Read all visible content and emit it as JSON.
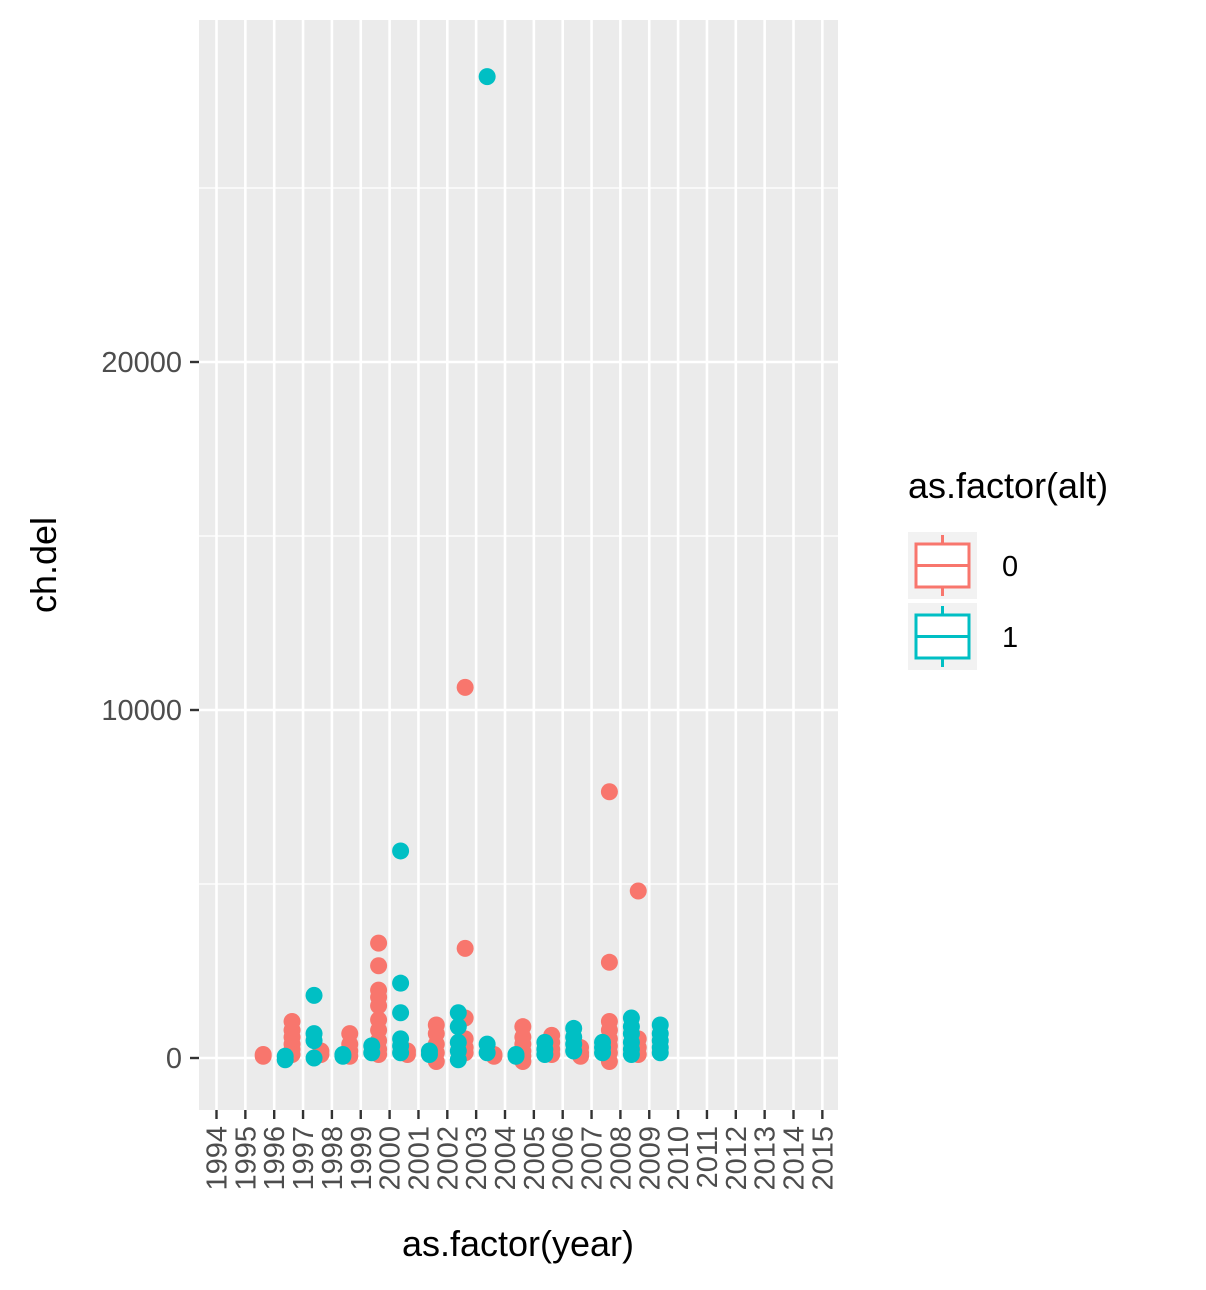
{
  "chart_data": {
    "type": "boxplot",
    "xlabel": "as.factor(year)",
    "ylabel": "ch.del",
    "categories": [
      "1994",
      "1995",
      "1996",
      "1997",
      "1998",
      "1999",
      "2000",
      "2001",
      "2002",
      "2003",
      "2004",
      "2005",
      "2006",
      "2007",
      "2008",
      "2009",
      "2010",
      "2011",
      "2012",
      "2013",
      "2014",
      "2015"
    ],
    "ylim": [
      -1500,
      28200
    ],
    "yticks": [
      0,
      10000,
      20000
    ],
    "grid": true,
    "legend": {
      "title": "as.factor(alt)",
      "position": "right",
      "entries": [
        {
          "label": "0",
          "color": "#F8766D"
        },
        {
          "label": "1",
          "color": "#00BFC4"
        }
      ]
    },
    "series": [
      {
        "name": "0",
        "color": "#F8766D",
        "points": [
          [
            "1996",
            100
          ],
          [
            "1996",
            50
          ],
          [
            "1997",
            1050
          ],
          [
            "1997",
            800
          ],
          [
            "1997",
            600
          ],
          [
            "1997",
            400
          ],
          [
            "1997",
            250
          ],
          [
            "1997",
            100
          ],
          [
            "1998",
            200
          ],
          [
            "1998",
            100
          ],
          [
            "1999",
            700
          ],
          [
            "1999",
            400
          ],
          [
            "1999",
            200
          ],
          [
            "1999",
            50
          ],
          [
            "2000",
            3300
          ],
          [
            "2000",
            2650
          ],
          [
            "2000",
            1950
          ],
          [
            "2000",
            1750
          ],
          [
            "2000",
            1500
          ],
          [
            "2000",
            1100
          ],
          [
            "2000",
            800
          ],
          [
            "2000",
            500
          ],
          [
            "2000",
            250
          ],
          [
            "2000",
            100
          ],
          [
            "2001",
            200
          ],
          [
            "2001",
            100
          ],
          [
            "2002",
            950
          ],
          [
            "2002",
            700
          ],
          [
            "2002",
            400
          ],
          [
            "2002",
            150
          ],
          [
            "2002",
            -100
          ],
          [
            "2003",
            10650
          ],
          [
            "2003",
            3150
          ],
          [
            "2003",
            1150
          ],
          [
            "2003",
            550
          ],
          [
            "2003",
            300
          ],
          [
            "2003",
            150
          ],
          [
            "2004",
            100
          ],
          [
            "2004",
            50
          ],
          [
            "2005",
            900
          ],
          [
            "2005",
            600
          ],
          [
            "2005",
            400
          ],
          [
            "2005",
            200
          ],
          [
            "2005",
            50
          ],
          [
            "2005",
            -100
          ],
          [
            "2006",
            650
          ],
          [
            "2006",
            450
          ],
          [
            "2006",
            250
          ],
          [
            "2006",
            100
          ],
          [
            "2007",
            300
          ],
          [
            "2007",
            150
          ],
          [
            "2007",
            50
          ],
          [
            "2008",
            7650
          ],
          [
            "2008",
            2750
          ],
          [
            "2008",
            1050
          ],
          [
            "2008",
            800
          ],
          [
            "2008",
            550
          ],
          [
            "2008",
            350
          ],
          [
            "2008",
            150
          ],
          [
            "2008",
            -100
          ],
          [
            "2009",
            4800
          ],
          [
            "2009",
            550
          ],
          [
            "2009",
            300
          ],
          [
            "2009",
            100
          ]
        ]
      },
      {
        "name": "1",
        "color": "#00BFC4",
        "points": [
          [
            "1996",
            50
          ],
          [
            "1996",
            -50
          ],
          [
            "1997",
            1800
          ],
          [
            "1997",
            700
          ],
          [
            "1997",
            500
          ],
          [
            "1997",
            0
          ],
          [
            "1998",
            100
          ],
          [
            "1998",
            50
          ],
          [
            "1999",
            350
          ],
          [
            "1999",
            150
          ],
          [
            "2000",
            5950
          ],
          [
            "2000",
            2150
          ],
          [
            "2000",
            1300
          ],
          [
            "2000",
            550
          ],
          [
            "2000",
            350
          ],
          [
            "2000",
            150
          ],
          [
            "2001",
            200
          ],
          [
            "2001",
            100
          ],
          [
            "2002",
            1300
          ],
          [
            "2002",
            900
          ],
          [
            "2002",
            450
          ],
          [
            "2002",
            200
          ],
          [
            "2002",
            -50
          ],
          [
            "2003",
            28200
          ],
          [
            "2003",
            400
          ],
          [
            "2003",
            150
          ],
          [
            "2004",
            100
          ],
          [
            "2004",
            50
          ],
          [
            "2005",
            450
          ],
          [
            "2005",
            250
          ],
          [
            "2005",
            100
          ],
          [
            "2006",
            850
          ],
          [
            "2006",
            600
          ],
          [
            "2006",
            400
          ],
          [
            "2006",
            200
          ],
          [
            "2007",
            450
          ],
          [
            "2007",
            300
          ],
          [
            "2007",
            150
          ],
          [
            "2008",
            1150
          ],
          [
            "2008",
            900
          ],
          [
            "2008",
            700
          ],
          [
            "2008",
            450
          ],
          [
            "2008",
            250
          ],
          [
            "2008",
            100
          ],
          [
            "2009",
            950
          ],
          [
            "2009",
            700
          ],
          [
            "2009",
            500
          ],
          [
            "2009",
            300
          ],
          [
            "2009",
            150
          ]
        ]
      }
    ]
  }
}
